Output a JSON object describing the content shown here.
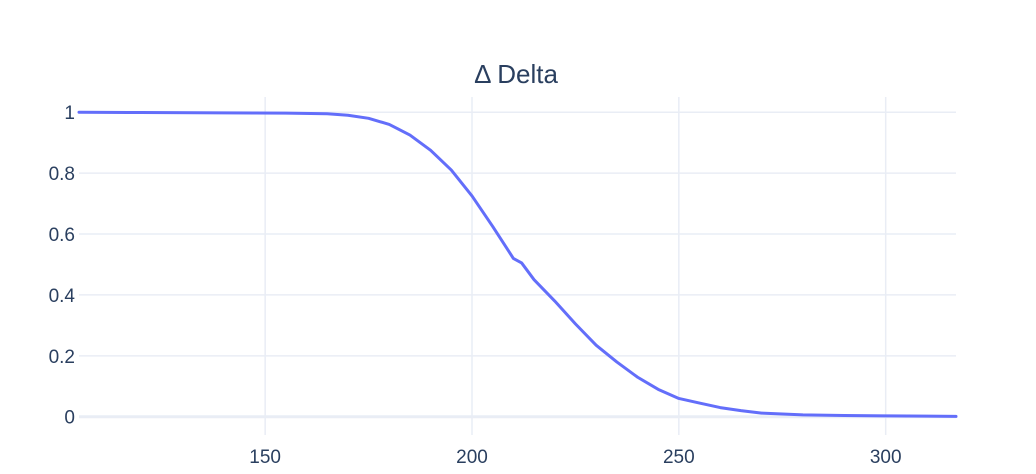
{
  "chart_data": {
    "type": "line",
    "title": "Δ Delta",
    "xlabel": "",
    "ylabel": "",
    "xlim": [
      105,
      317
    ],
    "ylim": [
      -0.06,
      1.05
    ],
    "xticks": [
      150,
      200,
      250,
      300
    ],
    "yticks": [
      0,
      0.2,
      0.4,
      0.6,
      0.8,
      1
    ],
    "grid": true,
    "series": [
      {
        "color": "#636efa",
        "x": [
          105,
          120,
          140,
          155,
          165,
          170,
          175,
          180,
          185,
          190,
          195,
          200,
          205,
          210,
          212,
          215,
          220,
          225,
          230,
          235,
          240,
          245,
          250,
          255,
          260,
          265,
          270,
          280,
          290,
          300,
          310,
          317
        ],
        "y": [
          1.0,
          0.999,
          0.998,
          0.997,
          0.995,
          0.99,
          0.98,
          0.96,
          0.925,
          0.875,
          0.81,
          0.725,
          0.625,
          0.52,
          0.505,
          0.45,
          0.38,
          0.305,
          0.235,
          0.18,
          0.13,
          0.09,
          0.06,
          0.045,
          0.03,
          0.02,
          0.012,
          0.006,
          0.004,
          0.003,
          0.002,
          0.001
        ]
      }
    ]
  }
}
